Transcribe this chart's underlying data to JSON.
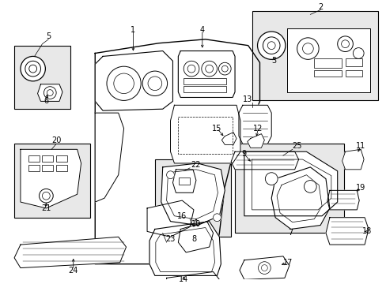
{
  "bg": "#ffffff",
  "lc": "#000000",
  "tc": "#000000",
  "box_fill": "#e8e8e8",
  "fw": 4.89,
  "fh": 3.6,
  "dpi": 100,
  "fs": 7.0
}
